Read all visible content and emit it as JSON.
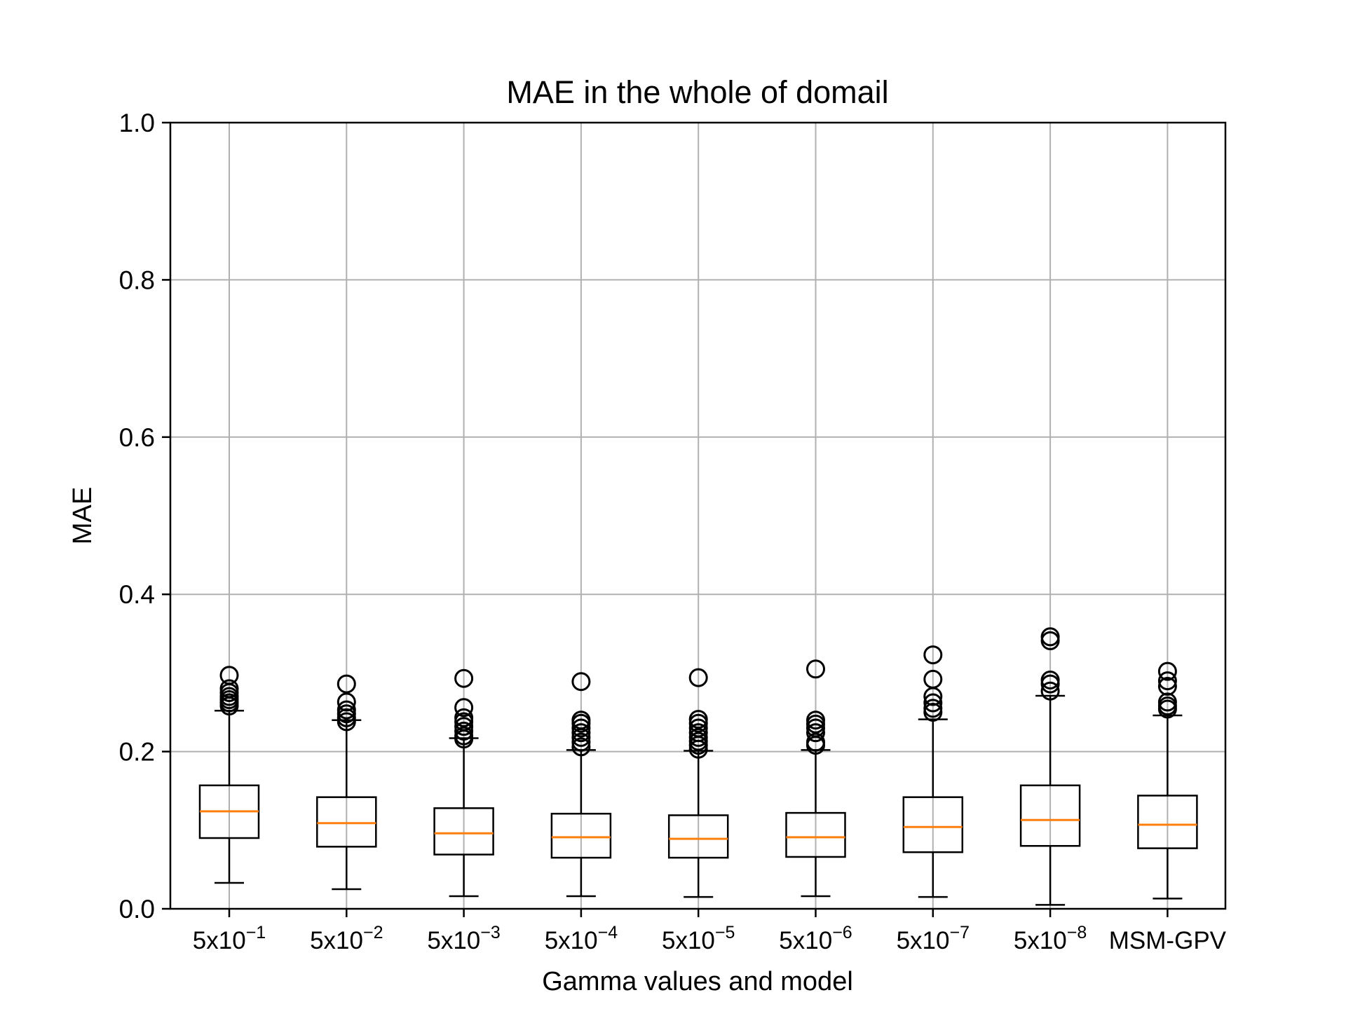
{
  "chart_data": {
    "type": "box",
    "title": "MAE in the whole of domail",
    "xlabel": "Gamma values and model",
    "ylabel": "MAE",
    "ylim": [
      0.0,
      1.0
    ],
    "yticks": [
      "0.0",
      "0.2",
      "0.4",
      "0.6",
      "0.8",
      "1.0"
    ],
    "grid": true,
    "categories": [
      {
        "base": "5x10",
        "exp": "−1"
      },
      {
        "base": "5x10",
        "exp": "−2"
      },
      {
        "base": "5x10",
        "exp": "−3"
      },
      {
        "base": "5x10",
        "exp": "−4"
      },
      {
        "base": "5x10",
        "exp": "−5"
      },
      {
        "base": "5x10",
        "exp": "−6"
      },
      {
        "base": "5x10",
        "exp": "−7"
      },
      {
        "base": "5x10",
        "exp": "−8"
      },
      {
        "base": "MSM-GPV",
        "exp": ""
      }
    ],
    "boxes": [
      {
        "whislo": 0.033,
        "q1": 0.09,
        "med": 0.124,
        "q3": 0.157,
        "whishi": 0.252,
        "fliers": [
          0.258,
          0.262,
          0.266,
          0.27,
          0.275,
          0.28,
          0.297
        ]
      },
      {
        "whislo": 0.025,
        "q1": 0.079,
        "med": 0.109,
        "q3": 0.142,
        "whishi": 0.24,
        "fliers": [
          0.238,
          0.243,
          0.248,
          0.253,
          0.263,
          0.286
        ]
      },
      {
        "whislo": 0.016,
        "q1": 0.069,
        "med": 0.096,
        "q3": 0.128,
        "whishi": 0.217,
        "fliers": [
          0.216,
          0.22,
          0.226,
          0.232,
          0.238,
          0.243,
          0.256,
          0.293
        ]
      },
      {
        "whislo": 0.016,
        "q1": 0.065,
        "med": 0.091,
        "q3": 0.121,
        "whishi": 0.202,
        "fliers": [
          0.206,
          0.212,
          0.218,
          0.224,
          0.23,
          0.236,
          0.24,
          0.289
        ]
      },
      {
        "whislo": 0.015,
        "q1": 0.065,
        "med": 0.089,
        "q3": 0.119,
        "whishi": 0.201,
        "fliers": [
          0.203,
          0.208,
          0.213,
          0.218,
          0.224,
          0.23,
          0.236,
          0.241,
          0.294
        ]
      },
      {
        "whislo": 0.016,
        "q1": 0.066,
        "med": 0.091,
        "q3": 0.122,
        "whishi": 0.202,
        "fliers": [
          0.208,
          0.212,
          0.224,
          0.23,
          0.235,
          0.24,
          0.305
        ]
      },
      {
        "whislo": 0.015,
        "q1": 0.072,
        "med": 0.104,
        "q3": 0.142,
        "whishi": 0.241,
        "fliers": [
          0.25,
          0.255,
          0.262,
          0.27,
          0.292,
          0.323
        ]
      },
      {
        "whislo": 0.005,
        "q1": 0.08,
        "med": 0.113,
        "q3": 0.157,
        "whishi": 0.271,
        "fliers": [
          0.277,
          0.286,
          0.291,
          0.341,
          0.346
        ]
      },
      {
        "whislo": 0.013,
        "q1": 0.077,
        "med": 0.107,
        "q3": 0.144,
        "whishi": 0.246,
        "fliers": [
          0.254,
          0.258,
          0.263,
          0.283,
          0.29,
          0.302
        ]
      }
    ],
    "colors": {
      "box": "#000000",
      "median": "#ff7f0e",
      "grid": "#b0b0b0"
    }
  }
}
